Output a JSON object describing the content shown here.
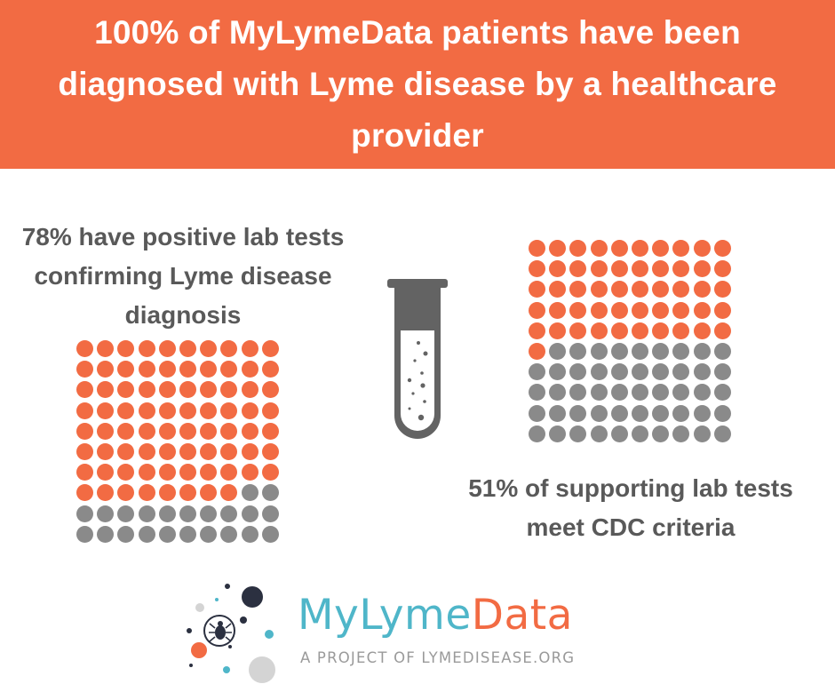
{
  "headline": "100% of MyLymeData patients have been diagnosed with Lyme disease by a healthcare provider",
  "stat_left": {
    "text": "78% have positive lab tests confirming Lyme disease diagnosis",
    "percent": 78,
    "dot_total": 100
  },
  "stat_right": {
    "text": "51% of supporting lab tests meet CDC criteria",
    "percent": 51,
    "dot_total": 100
  },
  "colors": {
    "accent": "#f26b43",
    "gray": "#8a8a8a",
    "text_gray": "#595959",
    "teal": "#4fb6c9"
  },
  "icons": [
    "test-tube-icon",
    "tick-logo-icon"
  ],
  "logo": {
    "name_part1": "MyLyme",
    "name_part2": "Data",
    "tagline": "A PROJECT OF LYMEDISEASE.ORG"
  }
}
